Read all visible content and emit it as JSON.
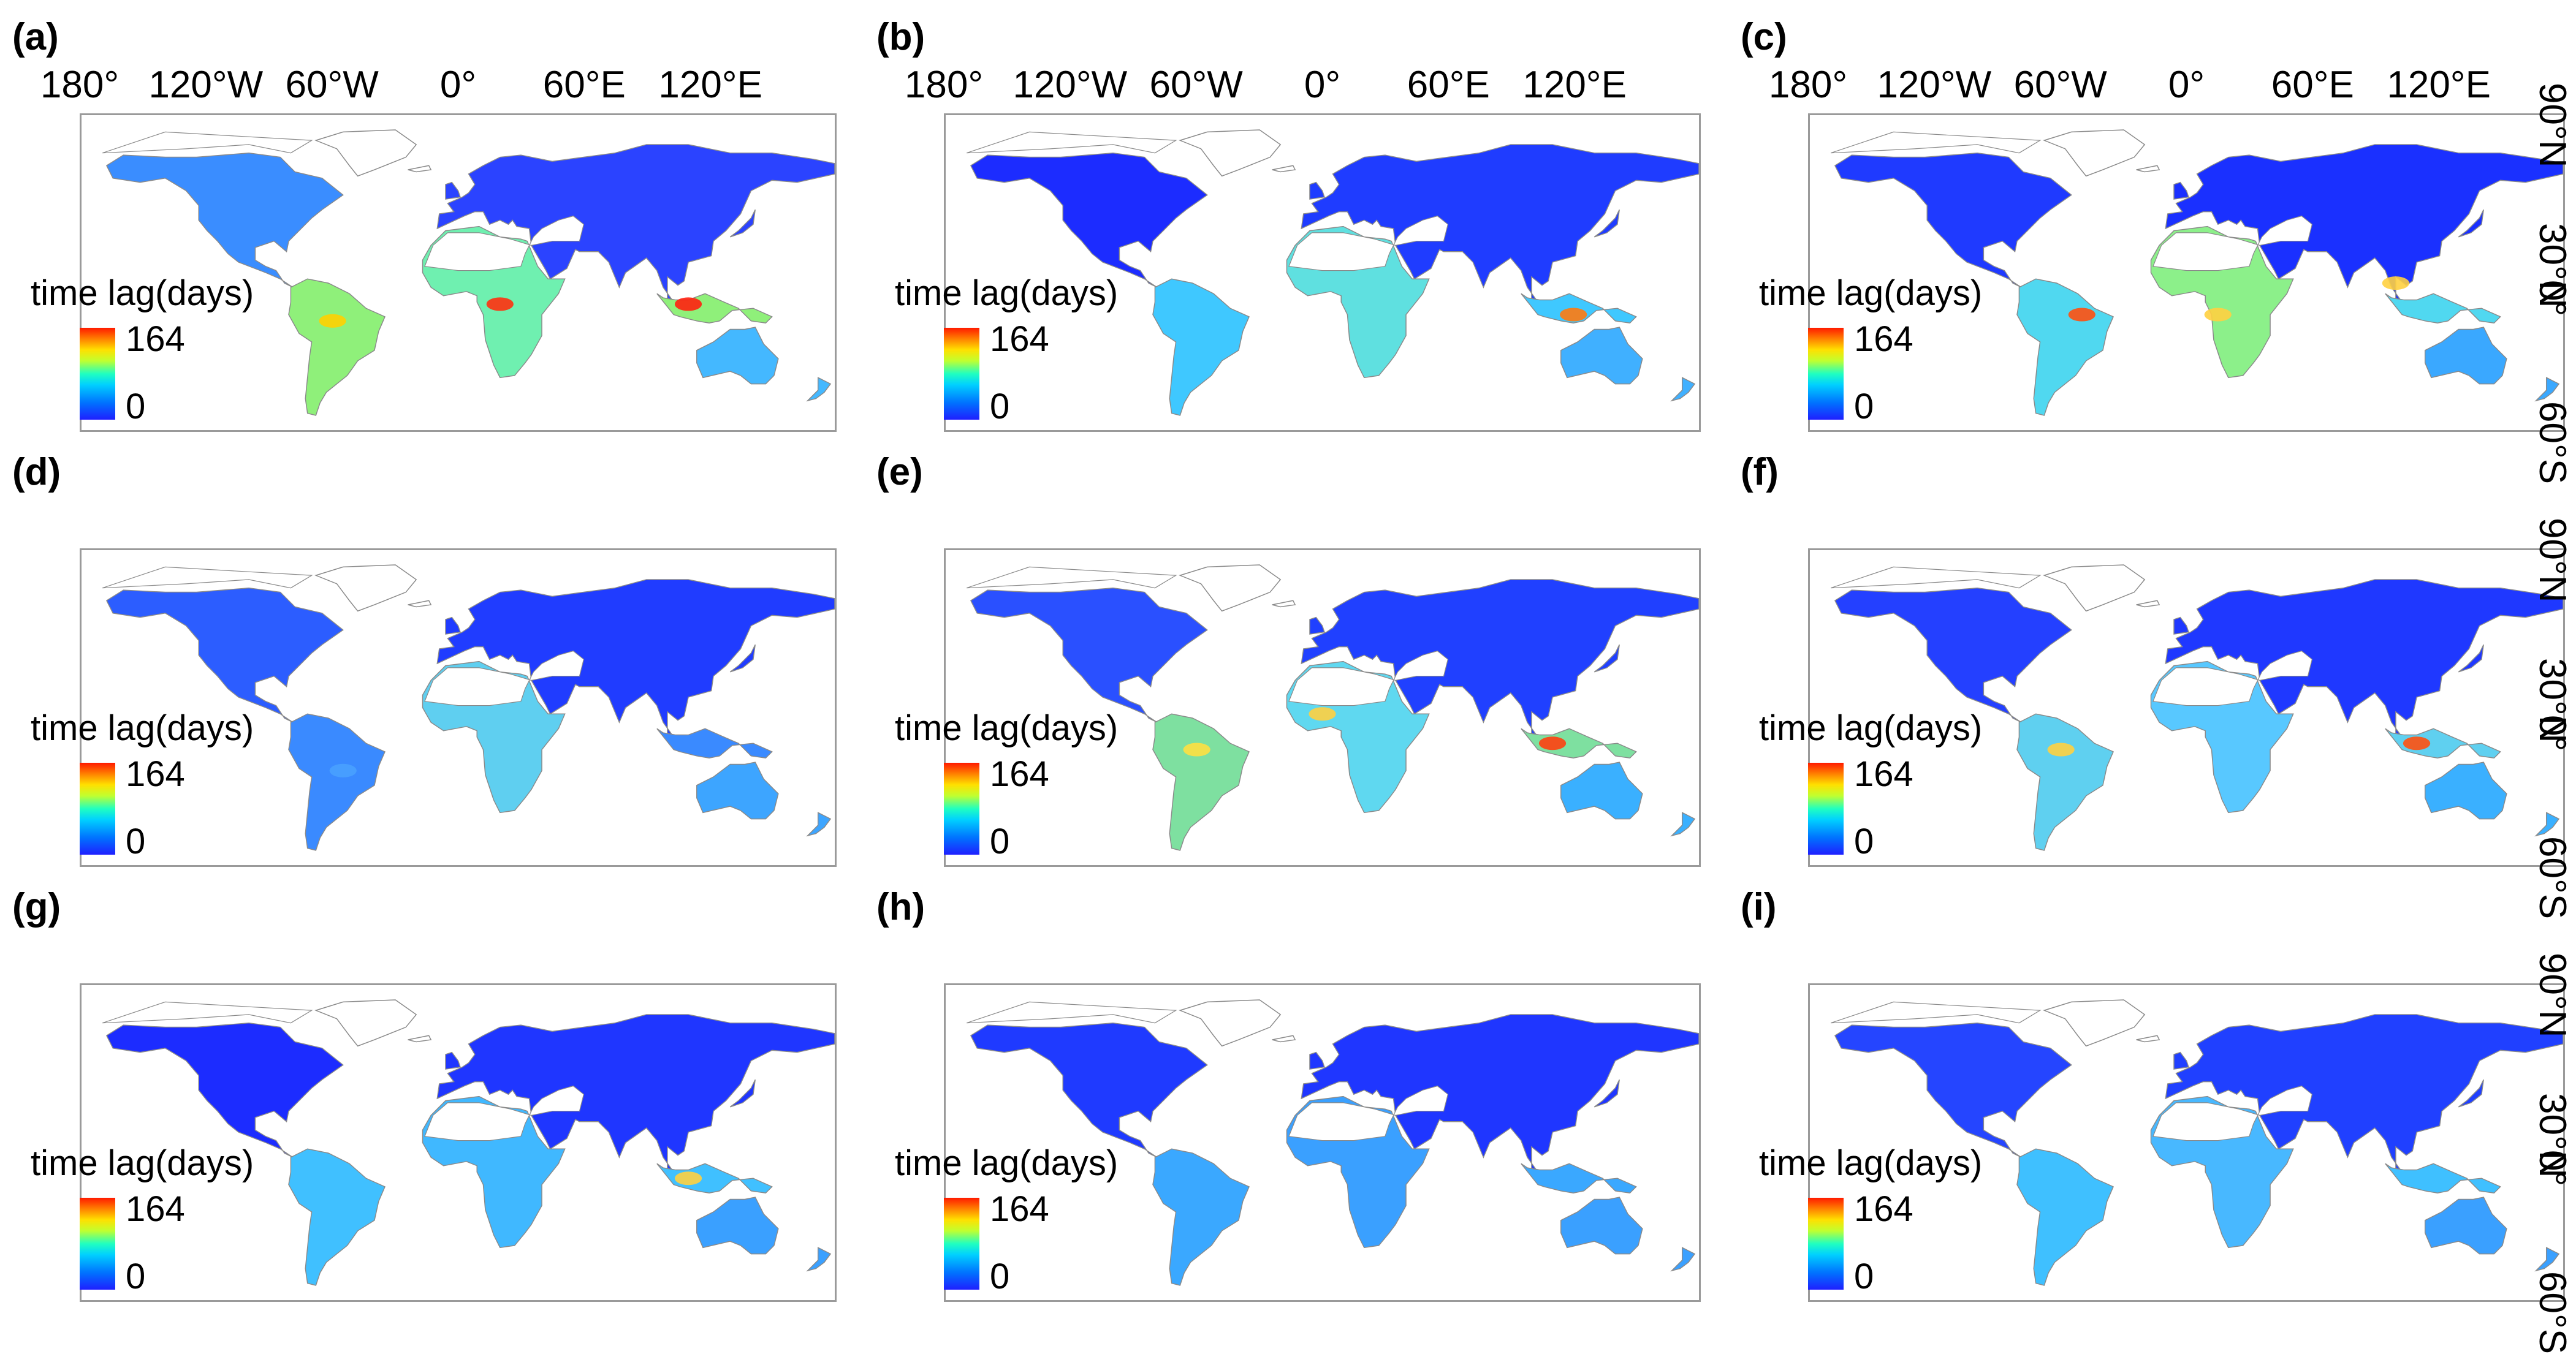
{
  "figure": {
    "longitude_ticks": [
      "180°",
      "120°W",
      "60°W",
      "0°",
      "60°E",
      "120°E"
    ],
    "latitude_ticks": [
      "90°N",
      "30°N",
      "0°",
      "60°S"
    ],
    "colorbar": {
      "title": "time lag(days)",
      "max_label": "164",
      "min_label": "0",
      "colors": [
        "#1f1fff",
        "#00d0ff",
        "#20ffc0",
        "#ffe000",
        "#ff1a00"
      ]
    },
    "colors": {
      "land_dark": "#1f35f0",
      "land_mid": "#2f8cff",
      "land_light": "#37d6ff",
      "hotspot_yellow": "#ffe63a",
      "hotspot_red": "#ff2a10",
      "coastline": "#8a8a8a",
      "frame": "#9a9a9a"
    },
    "panels": [
      {
        "label": "(a)"
      },
      {
        "label": "(b)"
      },
      {
        "label": "(c)"
      },
      {
        "label": "(d)"
      },
      {
        "label": "(e)"
      },
      {
        "label": "(f)"
      },
      {
        "label": "(g)"
      },
      {
        "label": "(h)"
      },
      {
        "label": "(i)"
      }
    ]
  }
}
